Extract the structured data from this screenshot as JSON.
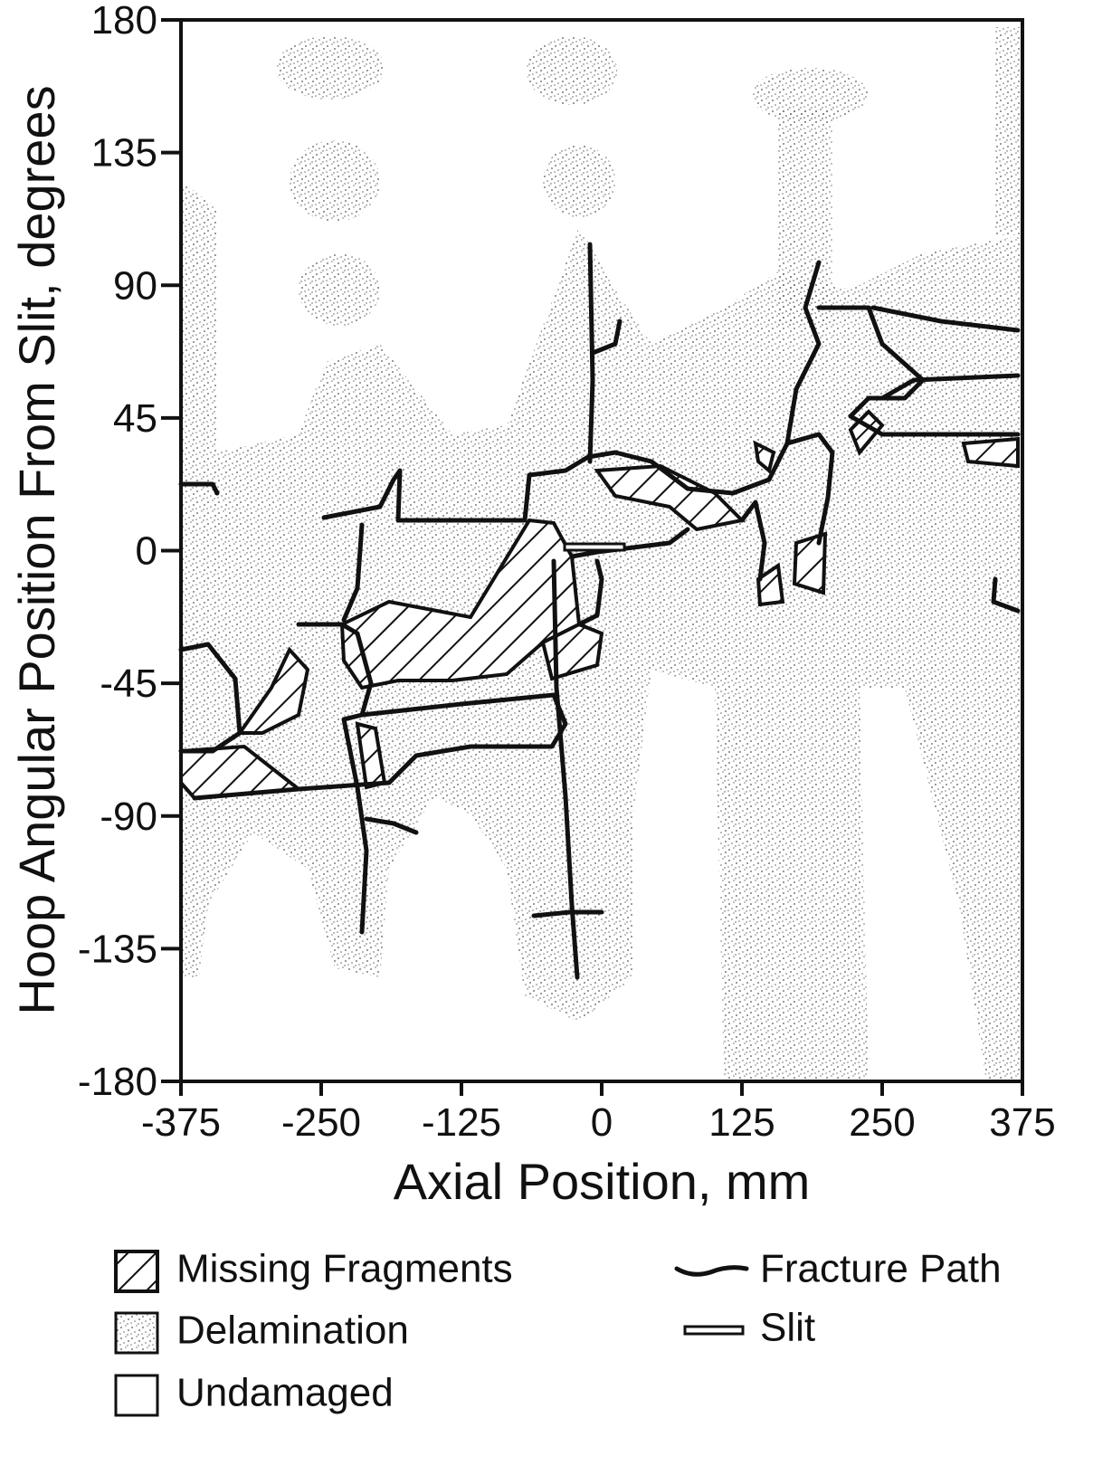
{
  "chart_data": {
    "type": "map",
    "xlabel": "Axial Position, mm",
    "ylabel": "Hoop Angular Position From Slit,  degrees",
    "xlim": [
      -375,
      375
    ],
    "ylim": [
      -180,
      180
    ],
    "xticks": [
      -375,
      -250,
      -125,
      0,
      125,
      250,
      375
    ],
    "yticks": [
      180,
      135,
      90,
      45,
      0,
      -45,
      -90,
      -135,
      -180
    ],
    "legend": [
      {
        "name": "Missing Fragments"
      },
      {
        "name": "Delamination"
      },
      {
        "name": "Undamaged"
      },
      {
        "name": "Fracture Path"
      },
      {
        "name": "Slit"
      }
    ]
  }
}
